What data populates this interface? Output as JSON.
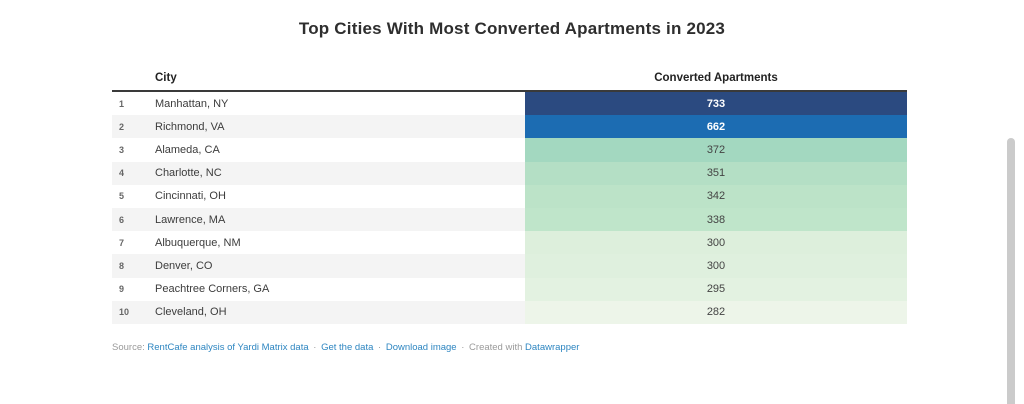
{
  "title": "Top Cities With Most Converted Apartments in 2023",
  "table": {
    "columns": {
      "rank": "",
      "city": "City",
      "value": "Converted Apartments"
    },
    "stripe_color": "#f4f4f4",
    "rows": [
      {
        "rank": "1",
        "city": "Manhattan, NY",
        "value": "733",
        "bg": "#2b4a80",
        "light_text": true
      },
      {
        "rank": "2",
        "city": "Richmond, VA",
        "value": "662",
        "bg": "#1c6cb2",
        "light_text": true
      },
      {
        "rank": "3",
        "city": "Alameda, CA",
        "value": "372",
        "bg": "#a3d8c0",
        "light_text": false
      },
      {
        "rank": "4",
        "city": "Charlotte, NC",
        "value": "351",
        "bg": "#b4dfc5",
        "light_text": false
      },
      {
        "rank": "5",
        "city": "Cincinnati, OH",
        "value": "342",
        "bg": "#bce3c8",
        "light_text": false
      },
      {
        "rank": "6",
        "city": "Lawrence, MA",
        "value": "338",
        "bg": "#bfe5ca",
        "light_text": false
      },
      {
        "rank": "7",
        "city": "Albuquerque, NM",
        "value": "300",
        "bg": "#ddefdc",
        "light_text": false
      },
      {
        "rank": "8",
        "city": "Denver, CO",
        "value": "300",
        "bg": "#dff0de",
        "light_text": false
      },
      {
        "rank": "9",
        "city": "Peachtree Corners, GA",
        "value": "295",
        "bg": "#e3f2e1",
        "light_text": false
      },
      {
        "rank": "10",
        "city": "Cleveland, OH",
        "value": "282",
        "bg": "#edf5e9",
        "light_text": false
      }
    ]
  },
  "footer": {
    "source_label": "Source:",
    "source_link": "RentCafe analysis of Yardi Matrix data",
    "separator": "·",
    "get_data_link": "Get the data",
    "download_link": "Download image",
    "created_with": "Created with",
    "datawrapper_link": "Datawrapper",
    "link_color": "#2e86c1"
  },
  "colors": {
    "title_text": "#2e2e2e",
    "header_text": "#222222",
    "value_dark_text": "#444444",
    "value_light_text": "#ffffff",
    "stripe": "#f4f4f4",
    "scrollbar_thumb": "#cbcbcb"
  },
  "chart_data": {
    "type": "table",
    "title": "Top Cities With Most Converted Apartments in 2023",
    "columns": [
      "City",
      "Converted Apartments"
    ],
    "categories": [
      "Manhattan, NY",
      "Richmond, VA",
      "Alameda, CA",
      "Charlotte, NC",
      "Cincinnati, OH",
      "Lawrence, MA",
      "Albuquerque, NM",
      "Denver, CO",
      "Peachtree Corners, GA",
      "Cleveland, OH"
    ],
    "ranks": [
      1,
      2,
      3,
      4,
      5,
      6,
      7,
      8,
      9,
      10
    ],
    "values": [
      733,
      662,
      372,
      351,
      342,
      338,
      300,
      300,
      295,
      282
    ],
    "heatmap": true,
    "heatmap_colors": [
      "#2b4a80",
      "#1c6cb2",
      "#a3d8c0",
      "#b4dfc5",
      "#bce3c8",
      "#bfe5ca",
      "#ddefdc",
      "#dff0de",
      "#e3f2e1",
      "#edf5e9"
    ],
    "source": "RentCafe analysis of Yardi Matrix data"
  }
}
